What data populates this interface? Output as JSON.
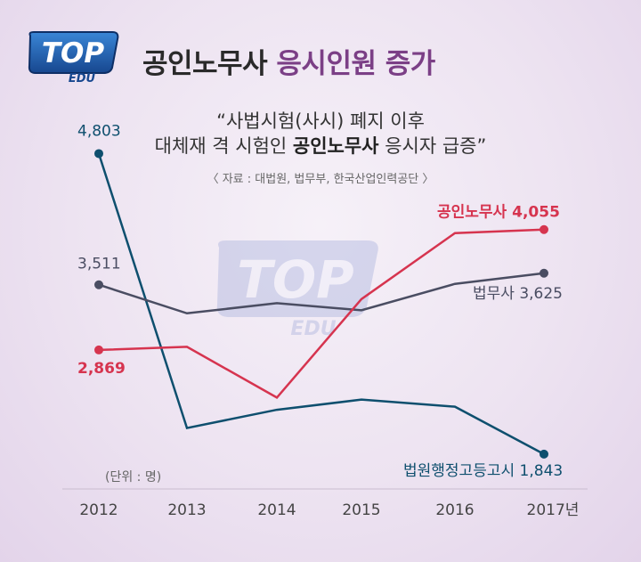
{
  "header": {
    "logo_top": "TOP",
    "logo_sub": "EDU",
    "title_main": "공인노무사",
    "title_highlight": "응시인원 증가"
  },
  "subtitle": {
    "line1": "“사법시험(사시) 폐지 이후",
    "line2_pre": "대체재 격 시험인 ",
    "line2_bold": "공인노무사",
    "line2_post": " 응시자 급증”"
  },
  "source": "〈 자료 : 대법원, 법무부, 한국산업인력공단 〉",
  "unit_note": "(단위 : 명)",
  "colors": {
    "nomusa": "#d6344f",
    "bumusa": "#4a4d62",
    "court": "#0e4f6e",
    "title_accent": "#7b3f86"
  },
  "chart_data": {
    "type": "line",
    "x": [
      "2012",
      "2013",
      "2014",
      "2015",
      "2016",
      "2017년"
    ],
    "ylim": [
      1500,
      5000
    ],
    "grid": false,
    "series": [
      {
        "name": "법원행정고등고시",
        "key": "court",
        "values": [
          4803,
          2100,
          2280,
          2380,
          2310,
          1843
        ],
        "start_label": "4,803",
        "end_label": "1,843"
      },
      {
        "name": "법무사",
        "key": "bumusa",
        "values": [
          3511,
          3230,
          3330,
          3260,
          3520,
          3625
        ],
        "start_label": "3,511",
        "end_label": "3,625"
      },
      {
        "name": "공인노무사",
        "key": "nomusa",
        "values": [
          2869,
          2900,
          2400,
          3370,
          4020,
          4055
        ],
        "start_label": "2,869",
        "end_label": "4,055"
      }
    ]
  }
}
